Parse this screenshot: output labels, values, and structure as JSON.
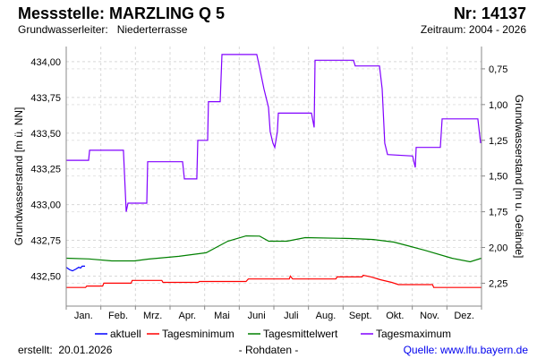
{
  "header": {
    "title": "Messstelle: MARZLING Q 5",
    "number": "Nr: 14137",
    "aquifer_label": "Grundwasserleiter:   Niederterrasse",
    "period": "Zeitraum: 2004 - 2026"
  },
  "footer": {
    "created": "erstellt:  20.01.2026",
    "note": "- Rohdaten -",
    "source": "Quelle: www.lfu.bayern.de"
  },
  "chart_data": {
    "type": "line",
    "xlabel": "",
    "ylabel": "Grundwasserstand [m ü. NN]",
    "y2label": "Grundwasserstand [m u. Gelände]",
    "x_unit": "day of year",
    "xlim": [
      0,
      365
    ],
    "ylim": [
      432.29,
      434.106
    ],
    "ground_level": 434.7,
    "categories": [
      "Jan.",
      "Feb.",
      "Mrz.",
      "Apr.",
      "Mai",
      "Juni",
      "Juli",
      "Aug.",
      "Sept.",
      "Okt.",
      "Nov.",
      "Dez."
    ],
    "yticks": [
      432.5,
      432.75,
      433.0,
      433.25,
      433.5,
      433.75,
      434.0
    ],
    "ytick_labels": [
      "432,50",
      "432,75",
      "433,00",
      "433,25",
      "433,50",
      "433,75",
      "434,00"
    ],
    "y2ticks": [
      0.75,
      1.0,
      1.25,
      1.5,
      1.75,
      2.0,
      2.25
    ],
    "y2tick_labels": [
      "0,75",
      "1,00",
      "1,25",
      "1,50",
      "1,75",
      "2,00",
      "2,25"
    ],
    "grid": true,
    "legend_position": "bottom",
    "series": [
      {
        "name": "aktuell",
        "color": "#0000ff",
        "points": [
          [
            0,
            432.562
          ],
          [
            3,
            432.544
          ],
          [
            5.5,
            432.537
          ],
          [
            8.7,
            432.55
          ],
          [
            11,
            432.562
          ],
          [
            12.6,
            432.556
          ],
          [
            14,
            432.569
          ],
          [
            16.5,
            432.569
          ]
        ]
      },
      {
        "name": "Tagesminimum",
        "color": "#ff0000",
        "points": [
          [
            0,
            432.42
          ],
          [
            17,
            432.42
          ],
          [
            18,
            432.43
          ],
          [
            32,
            432.43
          ],
          [
            33,
            432.45
          ],
          [
            57,
            432.45
          ],
          [
            58,
            432.47
          ],
          [
            84,
            432.47
          ],
          [
            85,
            432.456
          ],
          [
            116,
            432.456
          ],
          [
            117,
            432.462
          ],
          [
            158,
            432.462
          ],
          [
            160,
            432.48
          ],
          [
            196,
            432.48
          ],
          [
            197,
            432.5
          ],
          [
            199,
            432.48
          ],
          [
            237,
            432.48
          ],
          [
            238,
            432.494
          ],
          [
            260,
            432.494
          ],
          [
            261,
            432.506
          ],
          [
            268,
            432.494
          ],
          [
            276,
            432.475
          ],
          [
            286,
            432.456
          ],
          [
            292,
            432.44
          ],
          [
            322,
            432.44
          ],
          [
            323,
            432.42
          ],
          [
            365,
            432.42
          ]
        ]
      },
      {
        "name": "Tagesmittelwert",
        "color": "#008000",
        "points": [
          [
            0,
            432.625
          ],
          [
            20,
            432.62
          ],
          [
            40,
            432.606
          ],
          [
            60,
            432.606
          ],
          [
            72,
            432.619
          ],
          [
            99,
            432.638
          ],
          [
            123,
            432.663
          ],
          [
            142,
            432.744
          ],
          [
            158,
            432.781
          ],
          [
            170,
            432.78
          ],
          [
            178,
            432.744
          ],
          [
            194,
            432.744
          ],
          [
            210,
            432.769
          ],
          [
            250,
            432.763
          ],
          [
            270,
            432.756
          ],
          [
            288,
            432.738
          ],
          [
            300,
            432.713
          ],
          [
            315,
            432.681
          ],
          [
            339,
            432.625
          ],
          [
            355,
            432.6
          ],
          [
            365,
            432.625
          ]
        ]
      },
      {
        "name": "Tagesmaximum",
        "color": "#8000ff",
        "points": [
          [
            0,
            433.31
          ],
          [
            19.7,
            433.31
          ],
          [
            20.5,
            433.38
          ],
          [
            50.3,
            433.38
          ],
          [
            52.7,
            432.95
          ],
          [
            54.3,
            433.01
          ],
          [
            70.8,
            433.01
          ],
          [
            71.6,
            433.3
          ],
          [
            102.3,
            433.3
          ],
          [
            103.8,
            433.18
          ],
          [
            114.8,
            433.18
          ],
          [
            115.6,
            433.45
          ],
          [
            124.3,
            433.45
          ],
          [
            125,
            433.72
          ],
          [
            135.3,
            433.72
          ],
          [
            136.9,
            434.05
          ],
          [
            167.5,
            434.05
          ],
          [
            169.9,
            433.96
          ],
          [
            173.8,
            433.81
          ],
          [
            177.8,
            433.68
          ],
          [
            179.3,
            433.51
          ],
          [
            181.7,
            433.43
          ],
          [
            183.3,
            433.4
          ],
          [
            185.6,
            433.51
          ],
          [
            186.4,
            433.64
          ],
          [
            215.5,
            433.64
          ],
          [
            217.9,
            433.54
          ],
          [
            218.7,
            434.01
          ],
          [
            252.5,
            434.01
          ],
          [
            254,
            433.97
          ],
          [
            275.3,
            433.97
          ],
          [
            277.7,
            433.81
          ],
          [
            280,
            433.43
          ],
          [
            282.4,
            433.35
          ],
          [
            304.4,
            433.34
          ],
          [
            306.8,
            433.26
          ],
          [
            307.6,
            433.4
          ],
          [
            328.8,
            433.4
          ],
          [
            330.4,
            433.6
          ],
          [
            361.8,
            433.6
          ],
          [
            364.2,
            433.43
          ]
        ]
      }
    ]
  }
}
